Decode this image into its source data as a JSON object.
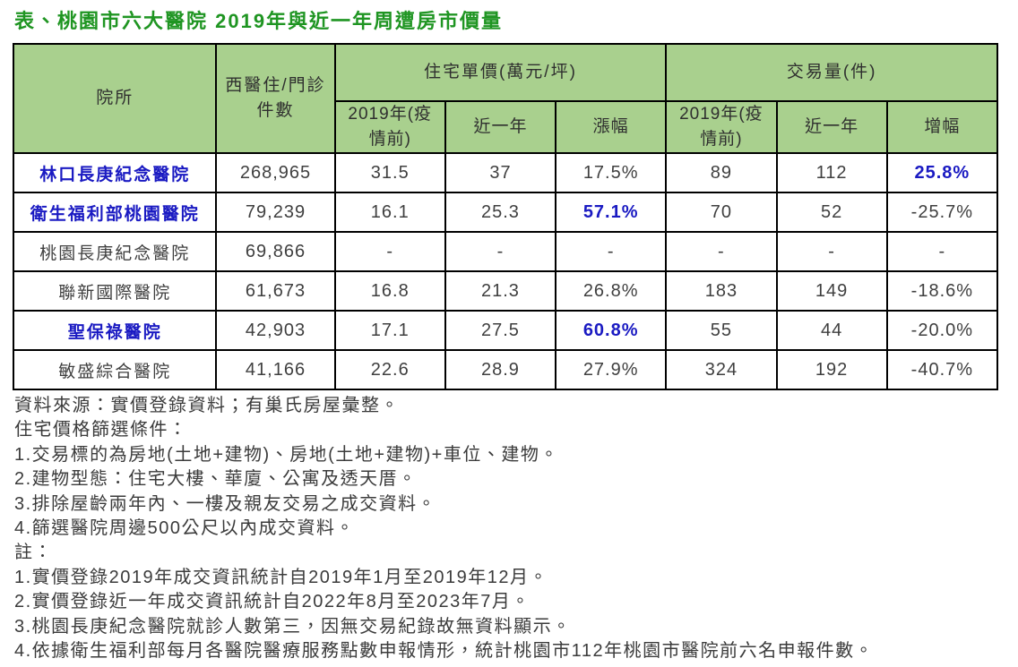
{
  "title": "表、桃園市六大醫院 2019年與近一年周遭房市價量",
  "colors": {
    "title_green": "#1f9522",
    "header_green": "#a9d08e",
    "highlight_blue": "#1a1ac2",
    "body_text": "#3f3f3f",
    "border_black": "#000000"
  },
  "table": {
    "header": {
      "hospital": "院所",
      "cases": "西醫住/門診件數",
      "price_group": "住宅單價(萬元/坪)",
      "volume_group": "交易量(件)",
      "sub": [
        "2019年(疫情前)",
        "近一年",
        "漲幅",
        "2019年(疫情前)",
        "近一年",
        "增幅"
      ]
    },
    "rows": [
      {
        "name": "林口長庚紀念醫院",
        "cells": [
          "268,965",
          "31.5",
          "37",
          "17.5%",
          "89",
          "112",
          "25.8%"
        ]
      },
      {
        "name": "衛生福利部桃園醫院",
        "cells": [
          "79,239",
          "16.1",
          "25.3",
          "57.1%",
          "70",
          "52",
          "-25.7%"
        ]
      },
      {
        "name": "桃園長庚紀念醫院",
        "cells": [
          "69,866",
          "-",
          "-",
          "-",
          "-",
          "-",
          "-"
        ]
      },
      {
        "name": "聯新國際醫院",
        "cells": [
          "61,673",
          "16.8",
          "21.3",
          "26.8%",
          "183",
          "149",
          "-18.6%"
        ]
      },
      {
        "name": "聖保祿醫院",
        "cells": [
          "42,903",
          "17.1",
          "27.5",
          "60.8%",
          "55",
          "44",
          "-20.0%"
        ]
      },
      {
        "name": "敏盛綜合醫院",
        "cells": [
          "41,166",
          "22.6",
          "28.9",
          "27.9%",
          "324",
          "192",
          "-40.7%"
        ]
      }
    ]
  },
  "notes": [
    "資料來源：實價登錄資料；有巢氏房屋彙整。",
    "住宅價格篩選條件：",
    "1.交易標的為房地(土地+建物)、房地(土地+建物)+車位、建物。",
    "2.建物型態：住宅大樓、華廈、公寓及透天厝。",
    "3.排除屋齡兩年內、一樓及親友交易之成交資料。",
    "4.篩選醫院周邊500公尺以內成交資料。",
    "註：",
    "1.實價登錄2019年成交資訊統計自2019年1月至2019年12月。",
    "2.實價登錄近一年成交資訊統計自2022年8月至2023年7月。",
    "3.桃園長庚紀念醫院就診人數第三，因無交易紀錄故無資料顯示。",
    "4.依據衛生福利部每月各醫院醫療服務點數申報情形，統計桃園市112年桃園市醫院前六名申報件數。"
  ]
}
